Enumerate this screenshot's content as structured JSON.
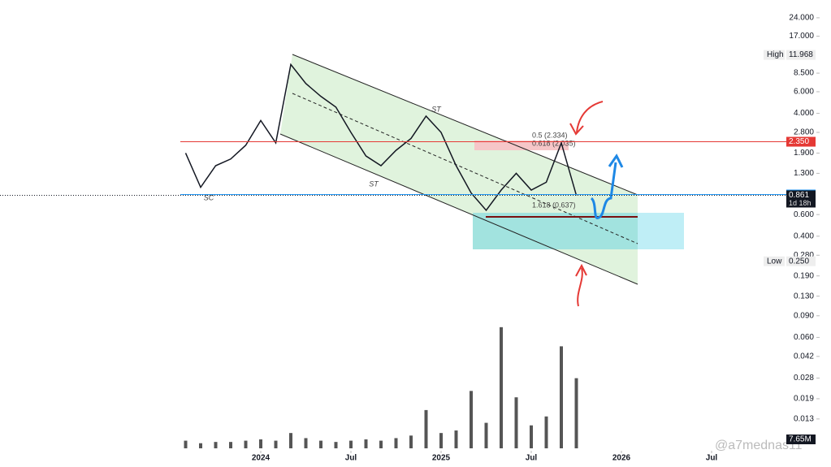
{
  "chart_data": {
    "type": "line",
    "x": [
      "2023-08",
      "2023-09",
      "2023-10",
      "2023-11",
      "2023-12",
      "2024-01",
      "2024-02",
      "2024-03",
      "2024-04",
      "2024-05",
      "2024-06",
      "2024-07",
      "2024-08",
      "2024-09",
      "2024-10",
      "2024-11",
      "2024-12",
      "2025-01",
      "2025-02",
      "2025-03",
      "2025-04",
      "2025-05",
      "2025-06",
      "2025-07",
      "2025-08",
      "2025-09",
      "2025-10"
    ],
    "values": [
      1.9,
      1.0,
      1.5,
      1.7,
      2.2,
      3.5,
      2.3,
      10,
      7,
      5.5,
      4.5,
      2.8,
      1.8,
      1.5,
      2.0,
      2.5,
      3.8,
      2.8,
      1.5,
      0.9,
      0.65,
      0.95,
      1.3,
      0.95,
      1.1,
      2.3,
      0.861
    ],
    "color": "#131722",
    "volume": [
      6,
      4,
      5,
      5,
      6,
      7,
      6,
      12,
      8,
      6,
      5,
      6,
      7,
      6,
      8,
      10,
      30,
      12,
      14,
      45,
      20,
      95,
      40,
      18,
      25,
      80,
      55
    ],
    "volume_color": "#555555",
    "volume_ylim": [
      0,
      100
    ],
    "volume_label": "7.65M",
    "log_scale": true,
    "ylim": [
      0.0075,
      33.5
    ],
    "yticks": [
      {
        "value": 24,
        "label": "24.000"
      },
      {
        "value": 17,
        "label": "17.000"
      },
      {
        "value": 8.5,
        "label": "8.500"
      },
      {
        "value": 6,
        "label": "6.000"
      },
      {
        "value": 4,
        "label": "4.000"
      },
      {
        "value": 2.8,
        "label": "2.800"
      },
      {
        "value": 1.9,
        "label": "1.900"
      },
      {
        "value": 1.3,
        "label": "1.300"
      },
      {
        "value": 0.6,
        "label": "0.600"
      },
      {
        "value": 0.4,
        "label": "0.400"
      },
      {
        "value": 0.28,
        "label": "0.280"
      },
      {
        "value": 0.19,
        "label": "0.190"
      },
      {
        "value": 0.13,
        "label": "0.130"
      },
      {
        "value": 0.09,
        "label": "0.090"
      },
      {
        "value": 0.06,
        "label": "0.060"
      },
      {
        "value": 0.042,
        "label": "0.042"
      },
      {
        "value": 0.028,
        "label": "0.028"
      },
      {
        "value": 0.019,
        "label": "0.019"
      },
      {
        "value": 0.013,
        "label": "0.013"
      }
    ],
    "xlim": [
      "2023-03",
      "2026-10"
    ],
    "xticks": [
      {
        "value": "2024-01",
        "label": "2024"
      },
      {
        "value": "2024-07",
        "label": "Jul"
      },
      {
        "value": "2025-01",
        "label": "2025"
      },
      {
        "value": "2025-07",
        "label": "Jul"
      },
      {
        "value": "2026-01",
        "label": "2026"
      },
      {
        "value": "2026-07",
        "label": "Jul"
      }
    ],
    "price_marks": [
      {
        "name": "High",
        "value": 11.968
      },
      {
        "name": "Low",
        "value": 0.25,
        "label": "0.250"
      },
      {
        "value": 2.35,
        "label": "2.350",
        "color": "#e53935"
      },
      {
        "value": 0.874,
        "color": "#2196f3"
      },
      {
        "value": 0.861,
        "color": "#131722",
        "countdown": "1d 18h"
      }
    ],
    "annotations": [
      "SC",
      "ST",
      "ST",
      "0.5 (2.334)",
      "0.618 (2.035)",
      "1.618 (0.637)"
    ],
    "watermark": "@a7mednas11"
  }
}
